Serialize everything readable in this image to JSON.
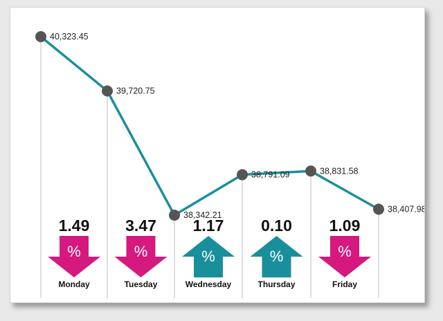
{
  "colors": {
    "line": "#1a8f9c",
    "point": "#555555",
    "up": "#1a8f9c",
    "down": "#d6197e",
    "guide": "#bcbcbc"
  },
  "arrow_symbol": "%",
  "chart_data": {
    "type": "line",
    "title": "",
    "xlabel": "",
    "ylabel": "",
    "categories": [
      "Monday",
      "Tuesday",
      "Wednesday",
      "Thursday",
      "Friday"
    ],
    "points": [
      {
        "value": 40323.45,
        "label": "40,323.45"
      },
      {
        "value": 39720.75,
        "label": "39,720.75"
      },
      {
        "value": 38342.21,
        "label": "38,342.21"
      },
      {
        "value": 38791.09,
        "label": "38,791.09"
      },
      {
        "value": 38831.58,
        "label": "38,831.58"
      },
      {
        "value": 38407.98,
        "label": "38,407.98"
      }
    ],
    "daily_change": [
      {
        "day": "Monday",
        "percent": "1.49",
        "direction": "down"
      },
      {
        "day": "Tuesday",
        "percent": "3.47",
        "direction": "down"
      },
      {
        "day": "Wednesday",
        "percent": "1.17",
        "direction": "up"
      },
      {
        "day": "Thursday",
        "percent": "0.10",
        "direction": "up"
      },
      {
        "day": "Friday",
        "percent": "1.09",
        "direction": "down"
      }
    ],
    "ylim": [
      38342.21,
      40323.45
    ],
    "grid": false,
    "legend": "none"
  }
}
